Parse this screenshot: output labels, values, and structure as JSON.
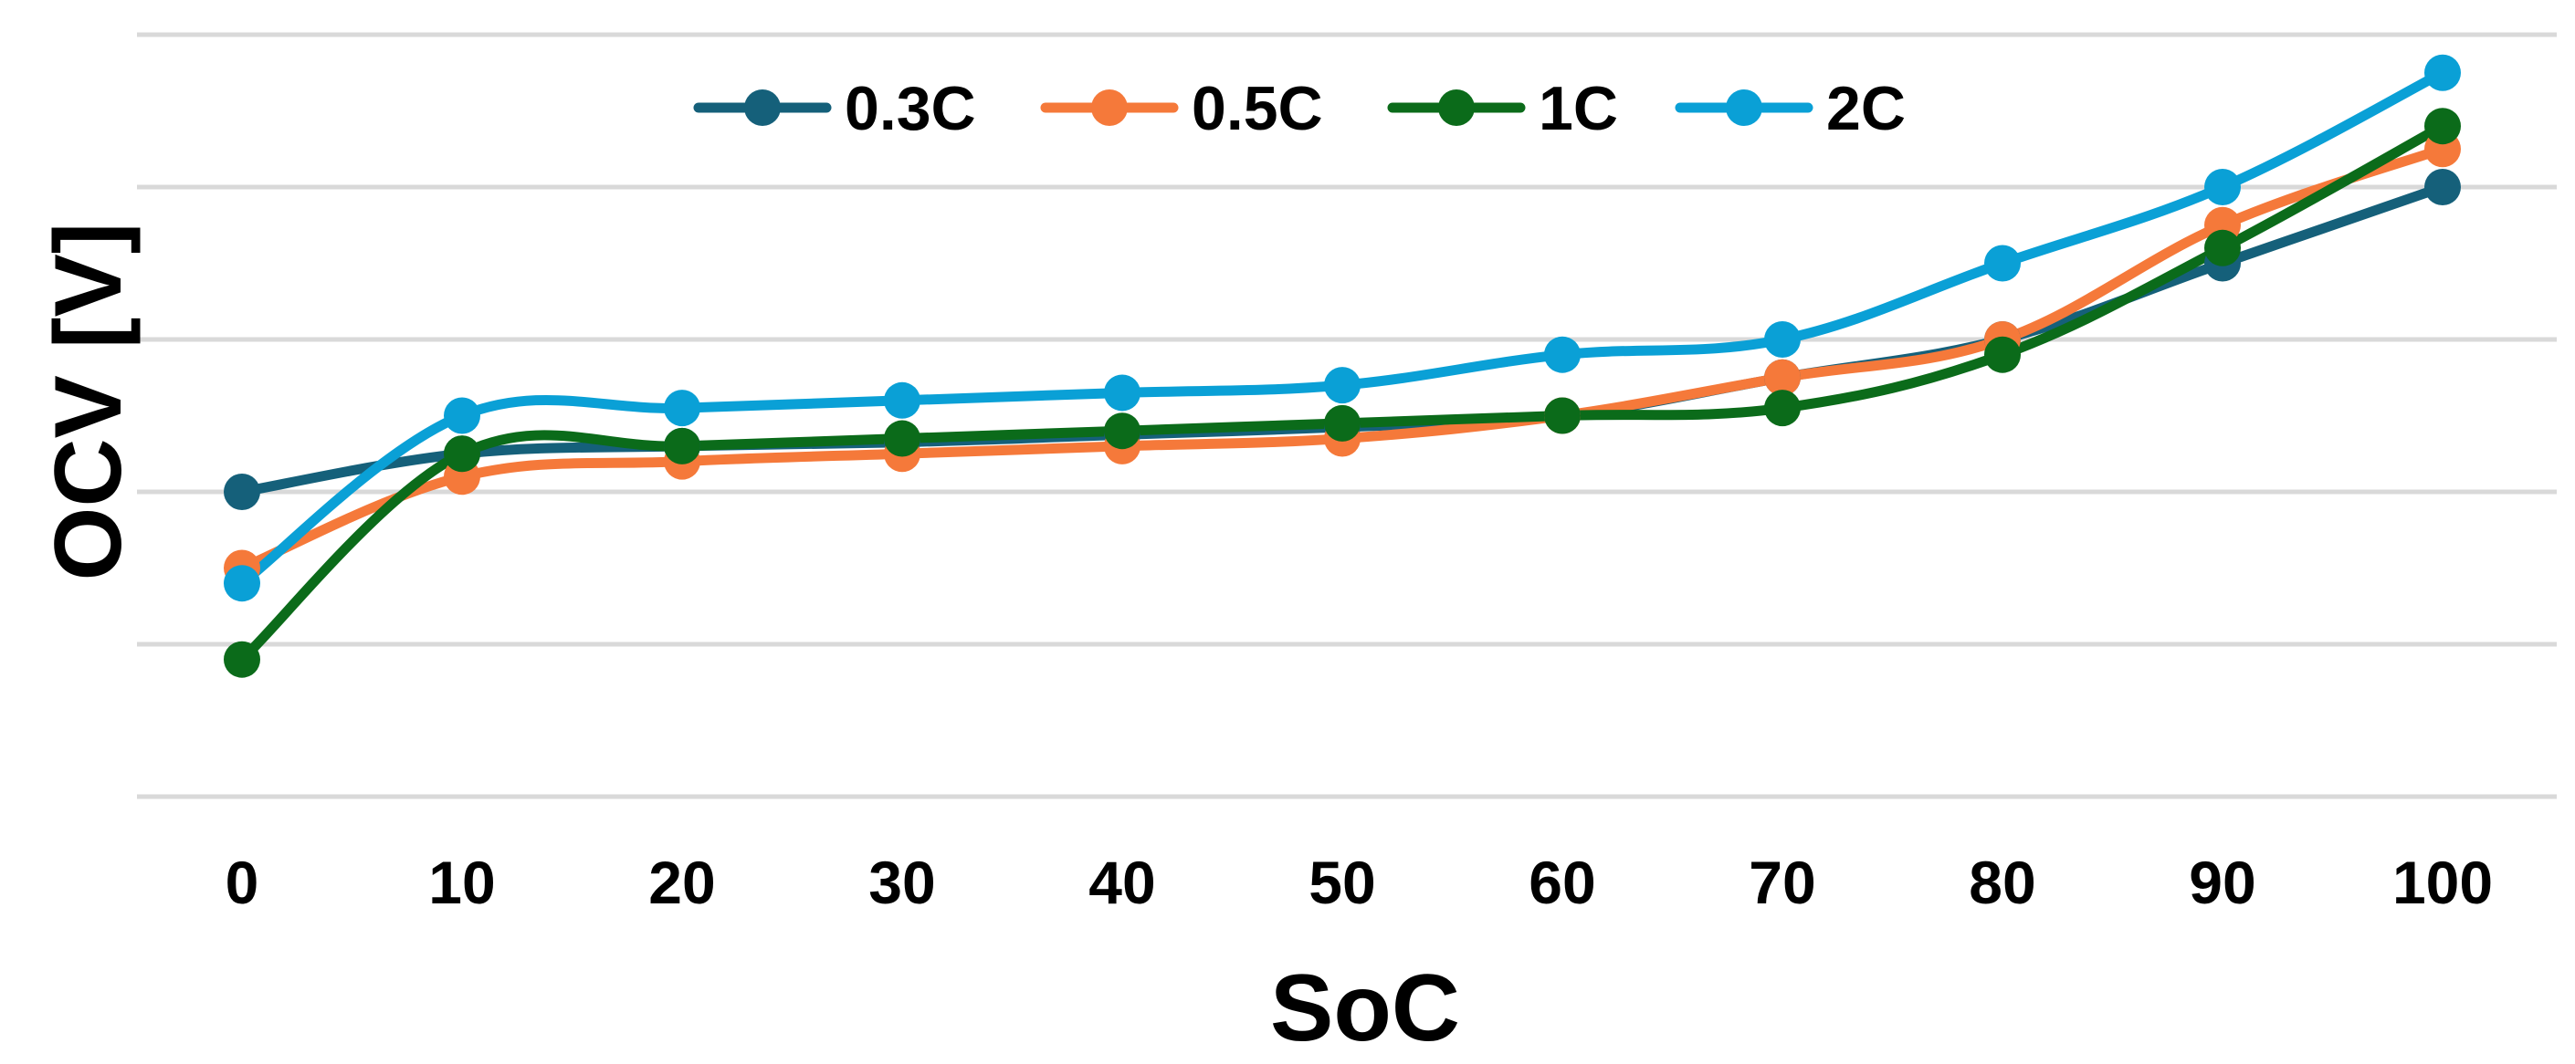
{
  "chart_data": {
    "type": "line",
    "title": "",
    "xlabel": "SoC",
    "ylabel": "OCV [V]",
    "categories": [
      "0",
      "10",
      "20",
      "30",
      "40",
      "50",
      "60",
      "70",
      "80",
      "90",
      "100"
    ],
    "ylim": [
      0,
      10
    ],
    "yticks": [
      0,
      2,
      4,
      6,
      8,
      10
    ],
    "y_tick_labels_shown": false,
    "grid": true,
    "legend_position": "top",
    "series": [
      {
        "name": "0.3C",
        "color": "#15607a",
        "values": [
          4.0,
          4.5,
          4.6,
          4.65,
          4.75,
          4.85,
          5.0,
          5.5,
          6.0,
          7.0,
          8.0
        ]
      },
      {
        "name": "0.5C",
        "color": "#f5793a",
        "values": [
          3.0,
          4.2,
          4.4,
          4.5,
          4.6,
          4.7,
          5.0,
          5.5,
          6.0,
          7.5,
          8.5
        ]
      },
      {
        "name": "1C",
        "color": "#0b6b1a",
        "values": [
          1.8,
          4.5,
          4.6,
          4.7,
          4.8,
          4.9,
          5.0,
          5.1,
          5.8,
          7.2,
          8.8
        ]
      },
      {
        "name": "2C",
        "color": "#0aa0d6",
        "values": [
          2.8,
          5.0,
          5.1,
          5.2,
          5.3,
          5.4,
          5.8,
          6.0,
          7.0,
          8.0,
          9.5
        ]
      }
    ]
  }
}
